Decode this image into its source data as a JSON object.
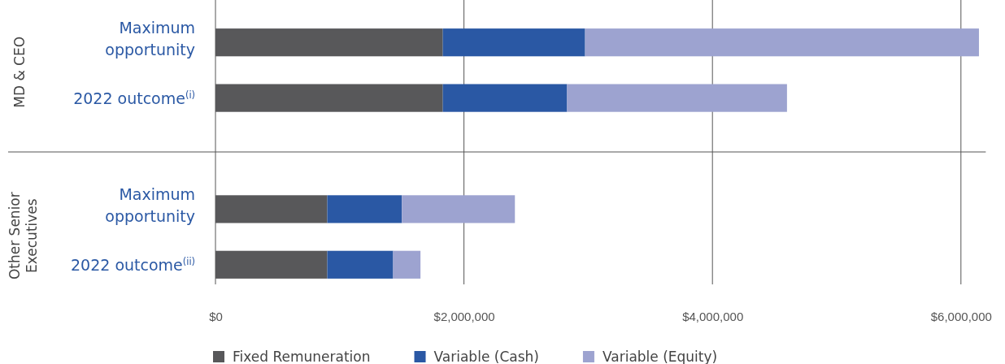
{
  "chart_data": {
    "type": "bar",
    "orientation": "horizontal",
    "stacked": true,
    "categories": [
      "Maximum opportunity",
      "2022 outcome$^{(i)}$",
      null,
      "Maximum opportunity",
      "2022 outcome$^{(ii)}$"
    ],
    "series": [
      {
        "name": "Fixed Remuneration",
        "color": "#58585a",
        "values": [
          1830000,
          1830000,
          null,
          900000,
          900000
        ]
      },
      {
        "name": "Variable (Cash)",
        "color": "#2a58a4",
        "values": [
          1145000,
          1000000,
          null,
          600000,
          530000
        ]
      },
      {
        "name": "Variable (Equity)",
        "color": "#9da3d0",
        "values": [
          3170000,
          1770000,
          null,
          910000,
          220000
        ]
      }
    ],
    "xlim": [
      0,
      6200000
    ],
    "xticks": [
      {
        "value": 0,
        "label": "$0"
      },
      {
        "value": 2000000,
        "label": "$2,000,000"
      },
      {
        "value": 4000000,
        "label": "$4,000,000"
      },
      {
        "value": 6000000,
        "label": "$6,000,000"
      }
    ],
    "grid": "x",
    "legend": "bottom",
    "annotations": [
      "MD & CEO",
      "Other Senior Executives"
    ]
  }
}
